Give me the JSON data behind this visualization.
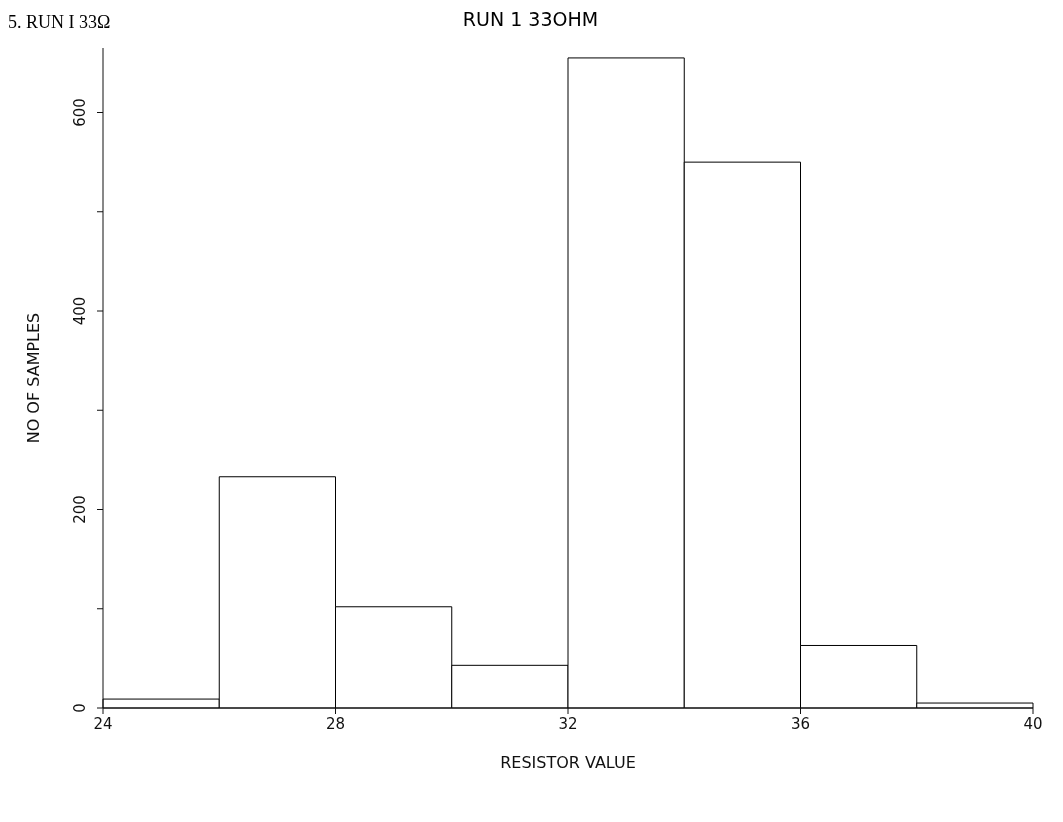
{
  "chart_data": {
    "type": "histogram",
    "title": "RUN 1 33OHM",
    "xlabel": "RESISTOR VALUE",
    "ylabel": "NO OF SAMPLES",
    "annotations": [
      "5. RUN I 33Ω"
    ],
    "bins": [
      24,
      26,
      28,
      30,
      32,
      34,
      36,
      38,
      40
    ],
    "values": [
      9,
      233,
      102,
      43,
      655,
      550,
      63,
      5
    ],
    "color": "#ffffff",
    "xlim": [
      24,
      40
    ],
    "xticks": [
      24,
      28,
      32,
      36,
      40
    ],
    "ylim": [
      0,
      665
    ],
    "yticks": [
      0,
      {
        "value": 100,
        "label": null
      },
      200,
      {
        "value": 300,
        "label": null
      },
      400,
      {
        "value": 500,
        "label": null
      },
      600
    ],
    "grid": false
  }
}
